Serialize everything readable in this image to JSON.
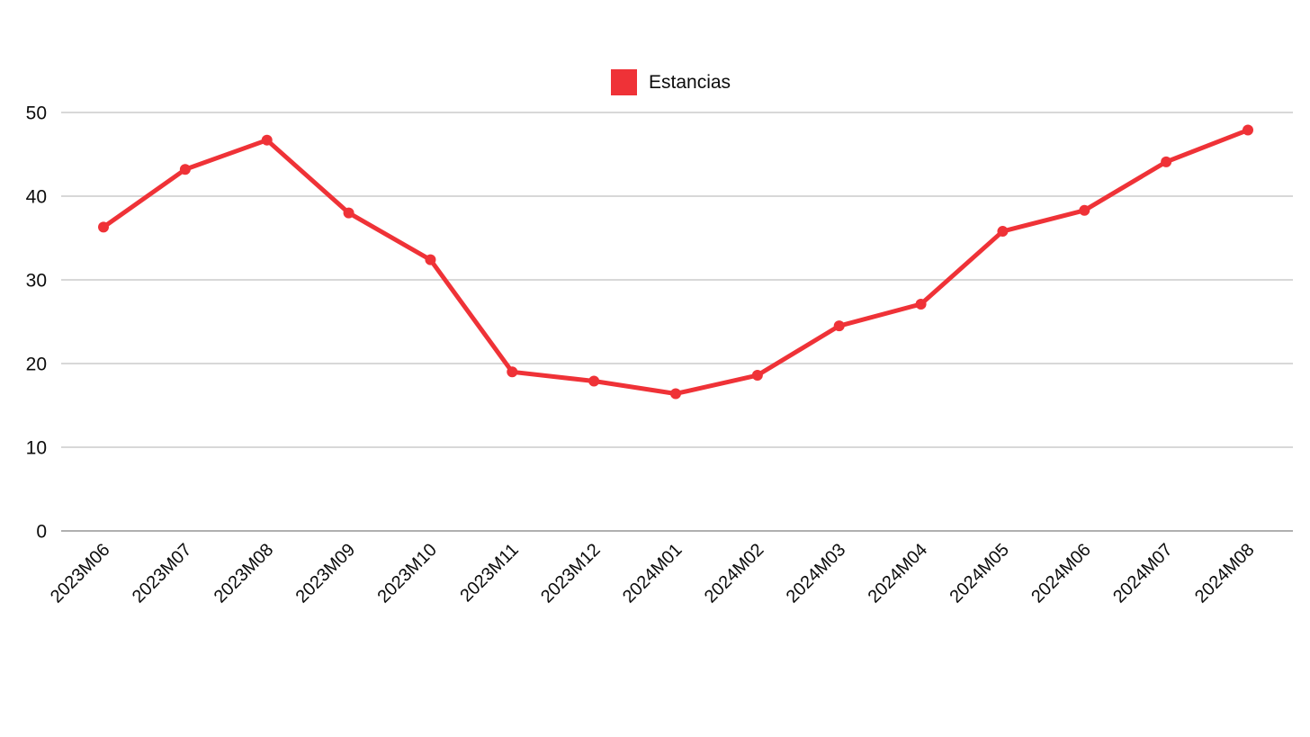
{
  "legend": {
    "items": [
      {
        "label": "Estancias",
        "color": "#ef3237"
      }
    ]
  },
  "colors": {
    "background": "#ffffff",
    "series_red": "#ef3237",
    "gridline": "#d8d8d8",
    "zero_line": "#b0b0b0",
    "axis_text": "#0c0c0c"
  },
  "chart_data": {
    "type": "line",
    "title": "",
    "xlabel": "",
    "ylabel": "",
    "categories": [
      "2023M06",
      "2023M07",
      "2023M08",
      "2023M09",
      "2023M10",
      "2023M11",
      "2023M12",
      "2024M01",
      "2024M02",
      "2024M03",
      "2024M04",
      "2024M05",
      "2024M06",
      "2024M07",
      "2024M08"
    ],
    "series": [
      {
        "name": "Estancias",
        "color": "#ef3237",
        "values": [
          36.3,
          43.2,
          46.7,
          38.0,
          32.4,
          19.0,
          17.9,
          16.4,
          18.6,
          24.5,
          27.1,
          35.8,
          38.3,
          44.1,
          47.9
        ]
      }
    ],
    "ylim": [
      0,
      50
    ],
    "y_ticks": [
      0,
      10,
      20,
      30,
      40,
      50
    ],
    "grid": true,
    "legend_position": "top-center",
    "x_label_rotation": -45,
    "marker": "circle"
  }
}
